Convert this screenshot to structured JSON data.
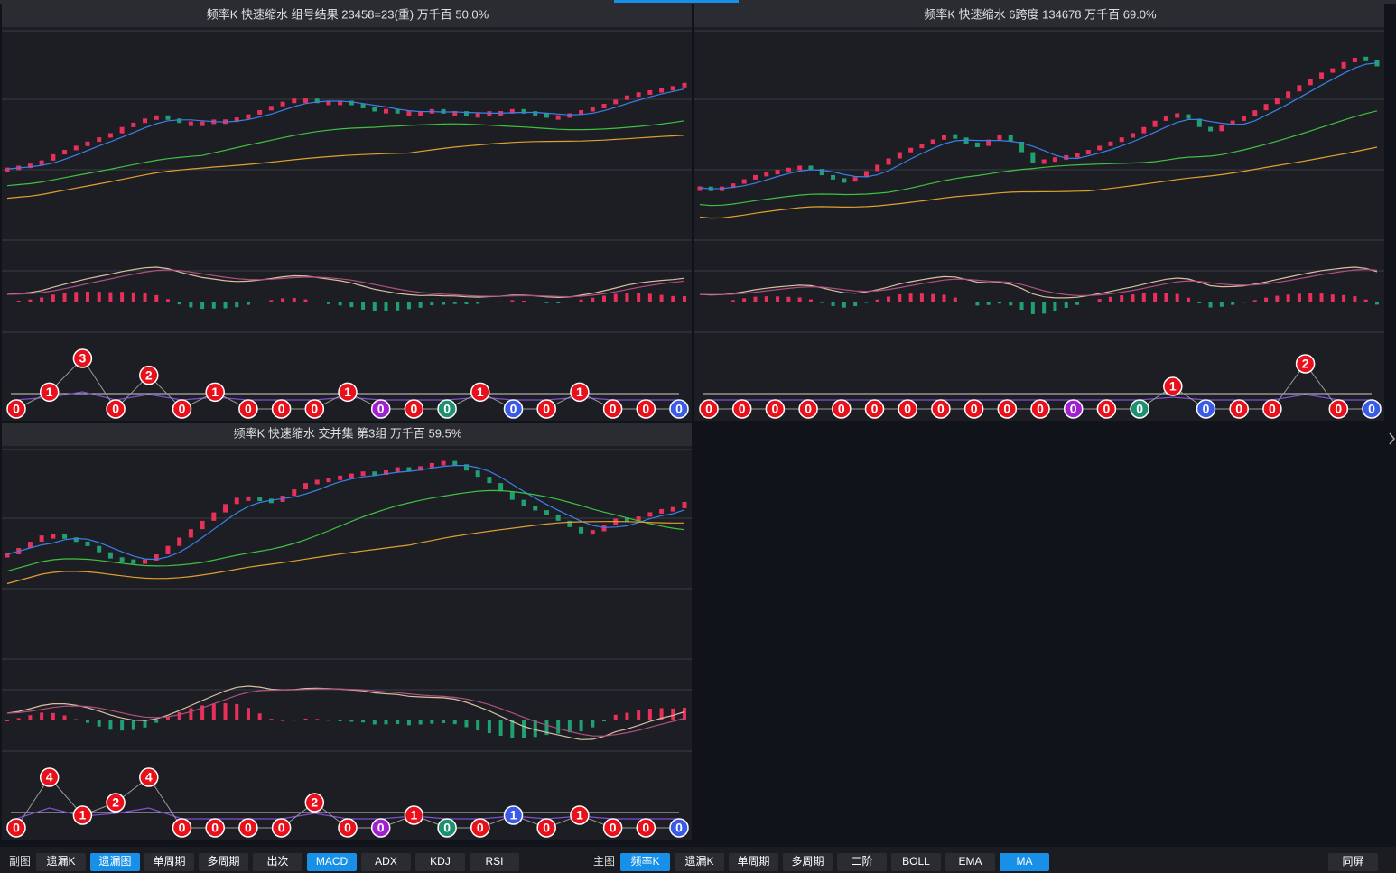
{
  "panels": [
    {
      "title": "频率K  快速缩水  组号结果 23458=23(重)  万千百  50.0%",
      "price": [
        34,
        35,
        36,
        38,
        41,
        43,
        45,
        47,
        49,
        51,
        54,
        56,
        58,
        59,
        58,
        56,
        56,
        56,
        57,
        57,
        58,
        60,
        62,
        64,
        66,
        67,
        67,
        66,
        66,
        66,
        65,
        63,
        62,
        62,
        61,
        61,
        61,
        62,
        61,
        61,
        60,
        60,
        61,
        61,
        62,
        61,
        60,
        59,
        59,
        60,
        62,
        63,
        65,
        67,
        69,
        70,
        71,
        72,
        73,
        75
      ],
      "bubbles": [
        0,
        1,
        3,
        0,
        2,
        0,
        1,
        0,
        0,
        0,
        1,
        0,
        0,
        0,
        1,
        0,
        0,
        1,
        0,
        0,
        0
      ],
      "bubble_colors": [
        "#e8101a",
        "#e8101a",
        "#e8101a",
        "#e8101a",
        "#e8101a",
        "#e8101a",
        "#e8101a",
        "#e8101a",
        "#e8101a",
        "#e8101a",
        "#e8101a",
        "#a020d0",
        "#e8101a",
        "#1e9070",
        "#e8101a",
        "#3a5ae8",
        "#e8101a",
        "#e8101a",
        "#e8101a",
        "#e8101a",
        "#3a5ae8"
      ]
    },
    {
      "title": "频率K  快速缩水  6跨度 134678  万千百  69.0%",
      "price": [
        25,
        24,
        25,
        27,
        29,
        31,
        32,
        33,
        34,
        35,
        34,
        31,
        29,
        28,
        30,
        33,
        36,
        39,
        42,
        44,
        46,
        48,
        50,
        49,
        46,
        45,
        48,
        50,
        47,
        42,
        37,
        38,
        39,
        40,
        41,
        43,
        45,
        47,
        49,
        51,
        54,
        57,
        59,
        60,
        58,
        54,
        52,
        55,
        57,
        59,
        62,
        65,
        68,
        71,
        74,
        77,
        80,
        82,
        85,
        87,
        86,
        83
      ],
      "bubbles": [
        0,
        0,
        0,
        0,
        0,
        0,
        0,
        0,
        0,
        0,
        0,
        0,
        0,
        0,
        1,
        0,
        0,
        0,
        2,
        0,
        0
      ],
      "bubble_colors": [
        "#e8101a",
        "#e8101a",
        "#e8101a",
        "#e8101a",
        "#e8101a",
        "#e8101a",
        "#e8101a",
        "#e8101a",
        "#e8101a",
        "#e8101a",
        "#e8101a",
        "#a020d0",
        "#e8101a",
        "#1e9070",
        "#e8101a",
        "#3a5ae8",
        "#e8101a",
        "#e8101a",
        "#e8101a",
        "#e8101a",
        "#3a5ae8"
      ]
    },
    {
      "title": "频率K  快速缩水  交并集 第3组  万千百  59.5%",
      "price": [
        50,
        53,
        56,
        59,
        59,
        58,
        56,
        54,
        51,
        48,
        47,
        46,
        47,
        50,
        54,
        58,
        62,
        66,
        70,
        74,
        77,
        77,
        76,
        75,
        78,
        81,
        84,
        85,
        86,
        87,
        88,
        89,
        88,
        90,
        91,
        90,
        92,
        93,
        94,
        93,
        90,
        87,
        84,
        80,
        76,
        73,
        71,
        69,
        66,
        63,
        60,
        61,
        64,
        67,
        66,
        68,
        70,
        71,
        72,
        75
      ],
      "bubbles": [
        0,
        4,
        1,
        2,
        4,
        0,
        0,
        0,
        0,
        2,
        0,
        0,
        1,
        0,
        0,
        1,
        0,
        1,
        0,
        0,
        0
      ],
      "bubble_colors": [
        "#e8101a",
        "#e8101a",
        "#e8101a",
        "#e8101a",
        "#e8101a",
        "#e8101a",
        "#e8101a",
        "#e8101a",
        "#e8101a",
        "#e8101a",
        "#e8101a",
        "#a020d0",
        "#e8101a",
        "#1e9070",
        "#e8101a",
        "#3a5ae8",
        "#e8101a",
        "#e8101a",
        "#e8101a",
        "#e8101a",
        "#3a5ae8"
      ]
    }
  ],
  "toolbar": {
    "sub_label": "副图",
    "sub_buttons": [
      "遗漏K",
      "遗漏图",
      "单周期",
      "多周期",
      "出次",
      "MACD",
      "ADX",
      "KDJ",
      "RSI"
    ],
    "sub_active": [
      1,
      5
    ],
    "main_label": "主图",
    "main_buttons": [
      "频率K",
      "遗漏K",
      "单周期",
      "多周期",
      "二阶",
      "BOLL",
      "EMA",
      "MA"
    ],
    "main_active": [
      0,
      7
    ],
    "right_button": "同屏"
  }
}
